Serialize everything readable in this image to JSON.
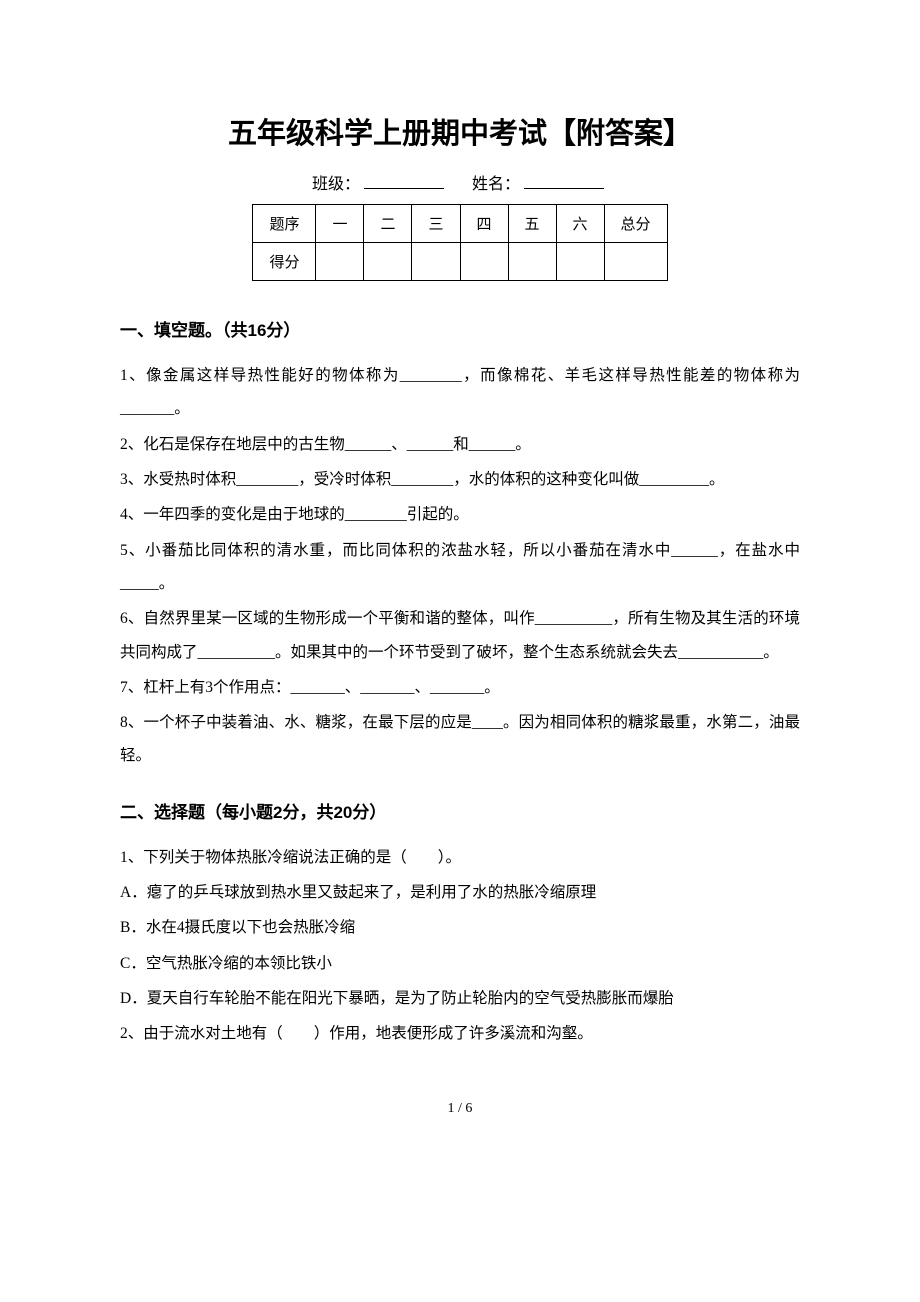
{
  "title": "五年级科学上册期中考试【附答案】",
  "header": {
    "class_label": "班级：",
    "name_label": "姓名："
  },
  "score_table": {
    "row1": [
      "题序",
      "一",
      "二",
      "三",
      "四",
      "五",
      "六",
      "总分"
    ],
    "row2_label": "得分"
  },
  "section1": {
    "heading": "一、填空题。（共16分）",
    "q1": "1、像金属这样导热性能好的物体称为________，而像棉花、羊毛这样导热性能差的物体称为_______。",
    "q2": "2、化石是保存在地层中的古生物______、______和______。",
    "q3": "3、水受热时体积________，受冷时体积________，水的体积的这种变化叫做_________。",
    "q4": "4、一年四季的变化是由于地球的________引起的。",
    "q5": "5、小番茄比同体积的清水重，而比同体积的浓盐水轻，所以小番茄在清水中______，在盐水中_____。",
    "q6": "6、自然界里某一区域的生物形成一个平衡和谐的整体，叫作__________，所有生物及其生活的环境共同构成了__________。如果其中的一个环节受到了破坏，整个生态系统就会失去___________。",
    "q7": "7、杠杆上有3个作用点：_______、_______、_______。",
    "q8": "8、一个杯子中装着油、水、糖浆，在最下层的应是____。因为相同体积的糖浆最重，水第二，油最轻。"
  },
  "section2": {
    "heading": "二、选择题（每小题2分，共20分）",
    "q1": {
      "stem": "1、下列关于物体热胀冷缩说法正确的是（　　）。",
      "optA": "A．瘪了的乒乓球放到热水里又鼓起来了，是利用了水的热胀冷缩原理",
      "optB": "B．水在4摄氏度以下也会热胀冷缩",
      "optC": "C．空气热胀冷缩的本领比铁小",
      "optD": "D．夏天自行车轮胎不能在阳光下暴晒，是为了防止轮胎内的空气受热膨胀而爆胎"
    },
    "q2": {
      "stem": "2、由于流水对土地有（　　）作用，地表便形成了许多溪流和沟壑。"
    }
  },
  "page_number": "1 / 6"
}
